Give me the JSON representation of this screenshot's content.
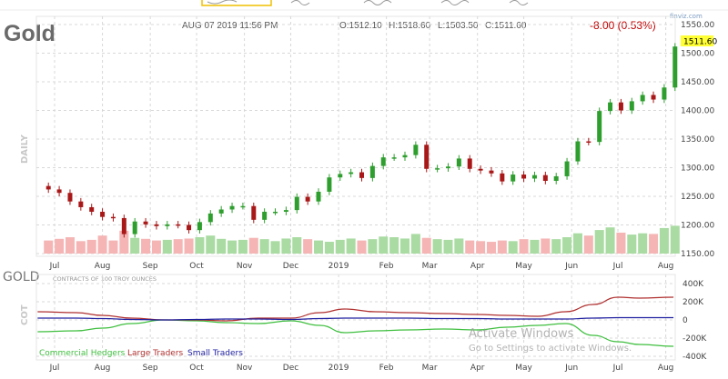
{
  "header": {
    "title": "Gold",
    "datetime": "AUG 07 2019 11:56 PM",
    "open": "O:1512.10",
    "high": "H:1518.60",
    "low": "L:1503.50",
    "close": "C:1511.60",
    "change": "-8.00 (0.53%)",
    "brand": "finviz.com",
    "last_price_label": "1511.60",
    "period_label": "DAILY"
  },
  "colors": {
    "up": "#2e9e2e",
    "down": "#a81818",
    "vol_up": "#a9dba2",
    "vol_down": "#f5b5b5",
    "commercial": "#3fbf3f",
    "large": "#b03030",
    "small": "#2020a0",
    "change": "#c00000",
    "highlight": "#ffff33"
  },
  "month_labels": [
    "Jul",
    "Aug",
    "Sep",
    "Oct",
    "Nov",
    "Dec",
    "2019",
    "Feb",
    "Mar",
    "Apr",
    "May",
    "Jun",
    "Jul",
    "Aug"
  ],
  "chart_data": [
    {
      "type": "candlestick",
      "title": "Gold",
      "ylim": [
        1150,
        1550
      ],
      "yticks": [
        "1550.00",
        "1500.00",
        "1450.00",
        "1400.00",
        "1350.00",
        "1300.00",
        "1250.00",
        "1200.00",
        "1150.00"
      ],
      "grid": true,
      "weeks": [
        "2018-06-25",
        "2018-07-02",
        "2018-07-09",
        "2018-07-16",
        "2018-07-23",
        "2018-07-30",
        "2018-08-06",
        "2018-08-13",
        "2018-08-20",
        "2018-08-27",
        "2018-09-03",
        "2018-09-10",
        "2018-09-17",
        "2018-09-24",
        "2018-10-01",
        "2018-10-08",
        "2018-10-15",
        "2018-10-22",
        "2018-10-29",
        "2018-11-05",
        "2018-11-12",
        "2018-11-19",
        "2018-11-26",
        "2018-12-03",
        "2018-12-10",
        "2018-12-17",
        "2018-12-24",
        "2018-12-31",
        "2019-01-07",
        "2019-01-14",
        "2019-01-21",
        "2019-01-28",
        "2019-02-04",
        "2019-02-11",
        "2019-02-18",
        "2019-02-25",
        "2019-03-04",
        "2019-03-11",
        "2019-03-18",
        "2019-03-25",
        "2019-04-01",
        "2019-04-08",
        "2019-04-15",
        "2019-04-22",
        "2019-04-29",
        "2019-05-06",
        "2019-05-13",
        "2019-05-20",
        "2019-05-27",
        "2019-06-03",
        "2019-06-10",
        "2019-06-17",
        "2019-06-24",
        "2019-07-01",
        "2019-07-08",
        "2019-07-15",
        "2019-07-22",
        "2019-07-29",
        "2019-08-05"
      ],
      "close": [
        1262,
        1256,
        1241,
        1231,
        1223,
        1214,
        1212,
        1184,
        1206,
        1201,
        1198,
        1201,
        1200,
        1191,
        1205,
        1220,
        1227,
        1233,
        1233,
        1209,
        1223,
        1223,
        1226,
        1249,
        1241,
        1258,
        1283,
        1289,
        1292,
        1282,
        1303,
        1318,
        1318,
        1322,
        1340,
        1298,
        1299,
        1302,
        1316,
        1298,
        1295,
        1290,
        1276,
        1288,
        1281,
        1287,
        1277,
        1285,
        1311,
        1346,
        1345,
        1399,
        1414,
        1400,
        1416,
        1427,
        1419,
        1440,
        1511.6
      ],
      "volume_relative": [
        40,
        45,
        50,
        38,
        42,
        55,
        40,
        70,
        48,
        45,
        40,
        42,
        44,
        46,
        50,
        55,
        45,
        40,
        42,
        48,
        44,
        38,
        46,
        50,
        44,
        40,
        36,
        42,
        46,
        40,
        44,
        52,
        50,
        46,
        60,
        48,
        44,
        42,
        46,
        40,
        38,
        36,
        40,
        38,
        44,
        42,
        46,
        44,
        50,
        62,
        55,
        72,
        80,
        64,
        58,
        62,
        60,
        78,
        85
      ],
      "last_value": 1511.6
    },
    {
      "type": "line",
      "title": "GOLD",
      "subtitle": "CONTRACTS OF 100 TROY OUNCES",
      "ylabel": "COT",
      "ylim": [
        -400000,
        400000
      ],
      "yticks": [
        "400K",
        "200K",
        "0",
        "-200K",
        "-400K"
      ],
      "x": [
        "2018-06-20",
        "2018-07-15",
        "2018-08-01",
        "2018-08-20",
        "2018-09-10",
        "2018-10-01",
        "2018-10-20",
        "2018-11-10",
        "2018-12-01",
        "2018-12-20",
        "2019-01-05",
        "2019-01-25",
        "2019-02-15",
        "2019-03-10",
        "2019-04-01",
        "2019-04-20",
        "2019-05-10",
        "2019-05-28",
        "2019-06-15",
        "2019-07-01",
        "2019-07-15",
        "2019-08-06"
      ],
      "series": [
        {
          "name": "Commercial Hedgers",
          "values": [
            -130000,
            -120000,
            -90000,
            -40000,
            0,
            -10000,
            -30000,
            -40000,
            -10000,
            -60000,
            -140000,
            -120000,
            -110000,
            -100000,
            -110000,
            -80000,
            -60000,
            -40000,
            -170000,
            -240000,
            -270000,
            -290000
          ]
        },
        {
          "name": "Large Traders",
          "values": [
            90000,
            80000,
            50000,
            20000,
            0,
            0,
            -10000,
            20000,
            20000,
            80000,
            120000,
            90000,
            80000,
            70000,
            60000,
            50000,
            40000,
            90000,
            170000,
            250000,
            240000,
            250000
          ]
        },
        {
          "name": "Small Traders",
          "values": [
            20000,
            20000,
            15000,
            5000,
            0,
            5000,
            10000,
            10000,
            5000,
            15000,
            20000,
            20000,
            20000,
            15000,
            15000,
            10000,
            10000,
            10000,
            20000,
            25000,
            25000,
            25000
          ]
        }
      ],
      "legend_position": "bottom-left"
    }
  ],
  "watermark": {
    "line1": "Activate Windows",
    "line2": "Go to Settings to activate Windows."
  }
}
